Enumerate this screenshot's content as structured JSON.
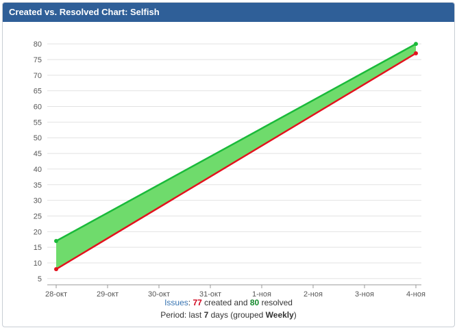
{
  "gadget": {
    "title": "Created vs. Resolved Chart: Selfish"
  },
  "footer": {
    "issues_label": "Issues",
    "colon": ":",
    "created_count": "77",
    "created_text": "created and",
    "resolved_count": "80",
    "resolved_text": "resolved",
    "period_prefix": "Period: last",
    "period_days": "7",
    "period_mid": "days (grouped",
    "period_group": "Weekly",
    "period_suffix": ")"
  },
  "colors": {
    "created": "#e3121e",
    "resolved": "#1aba3a",
    "fill": "#6fdb6c",
    "header": "#2f5f98"
  },
  "chart_data": {
    "type": "area",
    "categories": [
      "28-окт",
      "29-окт",
      "30-окт",
      "31-окт",
      "1-ноя",
      "2-ноя",
      "3-ноя",
      "4-ноя"
    ],
    "yticks": [
      5,
      10,
      15,
      20,
      25,
      30,
      35,
      40,
      45,
      50,
      55,
      60,
      65,
      70,
      75,
      80
    ],
    "ylim": [
      3,
      82
    ],
    "grid": true,
    "series": [
      {
        "key": "created",
        "x": [
          "28-окт",
          "4-ноя"
        ],
        "values": [
          8,
          77
        ]
      },
      {
        "key": "resolved",
        "x": [
          "28-окт",
          "4-ноя"
        ],
        "values": [
          17,
          80
        ]
      }
    ]
  }
}
